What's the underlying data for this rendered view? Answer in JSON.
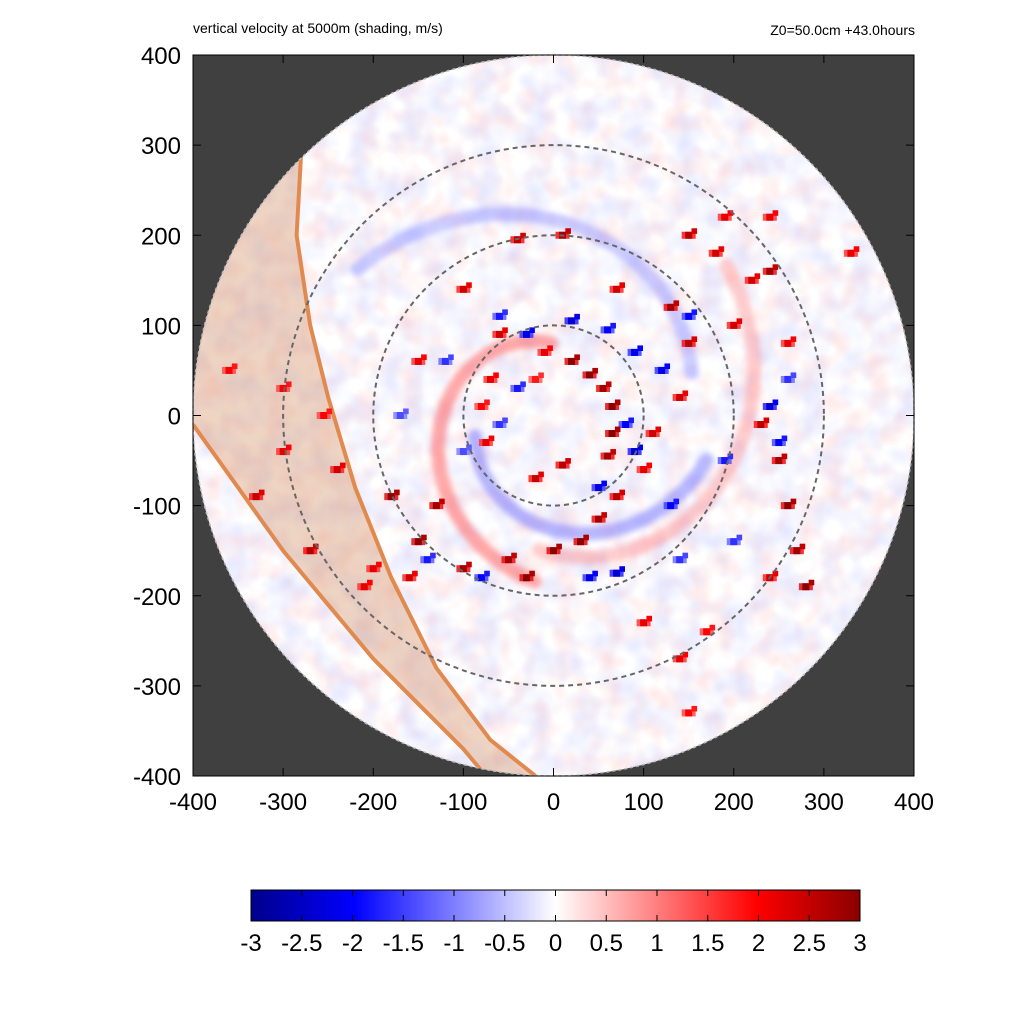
{
  "header": {
    "title_left": "vertical velocity at 5000m (shading, m/s)",
    "title_right": "Z0=50.0cm  +43.0hours"
  },
  "colors": {
    "background_outside_domain": "#404040",
    "negative_max": "#00008b",
    "negative_mid": "#0000ff",
    "zero": "#ffffff",
    "positive_mid": "#ff0000",
    "positive_max": "#8b0000",
    "band_fill": "#d9a07a",
    "band_edge": "#e08a4f",
    "range_rings": "#666666"
  },
  "chart_data": {
    "type": "heatmap",
    "title": "vertical velocity at 5000m (shading, m/s)",
    "annotation": "Z0=50.0cm  +43.0hours",
    "xlim": [
      -400,
      400
    ],
    "ylim": [
      -400,
      400
    ],
    "x_ticks": [
      "-400",
      "-300",
      "-200",
      "-100",
      "0",
      "100",
      "200",
      "300",
      "400"
    ],
    "y_ticks": [
      "400",
      "300",
      "200",
      "100",
      "0",
      "-100",
      "-200",
      "-300",
      "-400"
    ],
    "domain_radius": 400,
    "range_rings": [
      100,
      200,
      300
    ],
    "colorbar": {
      "min": -3,
      "max": 3,
      "ticks": [
        "-3",
        "-2.5",
        "-2",
        "-1.5",
        "-1",
        "-0.5",
        "0",
        "0.5",
        "1",
        "1.5",
        "2",
        "2.5",
        "3"
      ]
    },
    "band_inner_edge": [
      [
        -280,
        290
      ],
      [
        -285,
        200
      ],
      [
        -270,
        100
      ],
      [
        -250,
        20
      ],
      [
        -220,
        -80
      ],
      [
        -180,
        -180
      ],
      [
        -130,
        -280
      ],
      [
        -70,
        -360
      ],
      [
        -20,
        -400
      ]
    ],
    "band_outer_edge": [
      [
        -400,
        -10
      ],
      [
        -350,
        -80
      ],
      [
        -300,
        -150
      ],
      [
        -250,
        -210
      ],
      [
        -200,
        -270
      ],
      [
        -150,
        -320
      ],
      [
        -100,
        -370
      ],
      [
        -75,
        -400
      ]
    ],
    "updraft_cells": [
      [
        20,
        60,
        3
      ],
      [
        40,
        45,
        3
      ],
      [
        55,
        30,
        2.8
      ],
      [
        65,
        10,
        3
      ],
      [
        65,
        -20,
        3
      ],
      [
        60,
        -45,
        2.8
      ],
      [
        10,
        -55,
        2.6
      ],
      [
        -10,
        70,
        2.2
      ],
      [
        -20,
        40,
        1.8
      ],
      [
        -60,
        90,
        2.4
      ],
      [
        -70,
        40,
        2.2
      ],
      [
        -80,
        10,
        2
      ],
      [
        -75,
        -30,
        2.2
      ],
      [
        -20,
        -70,
        2.5
      ],
      [
        0,
        -150,
        3
      ],
      [
        30,
        -140,
        3
      ],
      [
        50,
        -115,
        2.8
      ],
      [
        70,
        -90,
        2.6
      ],
      [
        100,
        -60,
        2.2
      ],
      [
        110,
        -20,
        2.4
      ],
      [
        140,
        20,
        2.4
      ],
      [
        150,
        80,
        2.6
      ],
      [
        130,
        120,
        2.8
      ],
      [
        70,
        140,
        2.4
      ],
      [
        10,
        200,
        2.8
      ],
      [
        -40,
        195,
        2.6
      ],
      [
        -100,
        140,
        2.4
      ],
      [
        -150,
        60,
        2.2
      ],
      [
        -180,
        -90,
        3
      ],
      [
        -130,
        -100,
        2.8
      ],
      [
        -150,
        -140,
        3
      ],
      [
        -100,
        -170,
        2.8
      ],
      [
        -50,
        -160,
        2.8
      ],
      [
        -30,
        -180,
        3
      ],
      [
        -160,
        -180,
        2.4
      ],
      [
        -200,
        -170,
        2.2
      ],
      [
        -240,
        -60,
        2.4
      ],
      [
        -255,
        0,
        2
      ],
      [
        230,
        -10,
        2.6
      ],
      [
        250,
        -50,
        2.8
      ],
      [
        260,
        -100,
        3
      ],
      [
        270,
        -150,
        2.8
      ],
      [
        280,
        -190,
        3
      ],
      [
        240,
        -180,
        2.4
      ],
      [
        200,
        100,
        2.4
      ],
      [
        260,
        80,
        2.2
      ],
      [
        220,
        150,
        2.4
      ],
      [
        150,
        200,
        2.6
      ],
      [
        180,
        180,
        2.4
      ],
      [
        330,
        180,
        2.2
      ],
      [
        240,
        160,
        2.8
      ],
      [
        -330,
        -90,
        2.5
      ],
      [
        -360,
        50,
        2
      ],
      [
        -300,
        -40,
        2.2
      ],
      [
        -270,
        -150,
        2.6
      ],
      [
        140,
        -270,
        2.2
      ],
      [
        100,
        -230,
        2.2
      ],
      [
        170,
        -240,
        2
      ],
      [
        -210,
        -190,
        2.2
      ],
      [
        190,
        220,
        2.2
      ],
      [
        240,
        220,
        2.2
      ],
      [
        -300,
        30,
        2
      ],
      [
        150,
        -330,
        2
      ]
    ],
    "downdraft_cells": [
      [
        -30,
        90,
        -2.2
      ],
      [
        20,
        105,
        -2.4
      ],
      [
        60,
        95,
        -2
      ],
      [
        90,
        70,
        -2.2
      ],
      [
        -40,
        30,
        -1.8
      ],
      [
        -60,
        -10,
        -1.6
      ],
      [
        90,
        -40,
        -2.4
      ],
      [
        80,
        -10,
        -2
      ],
      [
        50,
        -80,
        -2.2
      ],
      [
        40,
        -180,
        -2.2
      ],
      [
        70,
        -175,
        -2.4
      ],
      [
        -80,
        -180,
        -2
      ],
      [
        -140,
        -160,
        -1.8
      ],
      [
        130,
        -100,
        -2
      ],
      [
        190,
        -50,
        -1.8
      ],
      [
        240,
        10,
        -2.4
      ],
      [
        250,
        -30,
        -2
      ],
      [
        120,
        50,
        -2.2
      ],
      [
        150,
        110,
        -2
      ],
      [
        -120,
        60,
        -1.6
      ],
      [
        -60,
        110,
        -1.8
      ],
      [
        260,
        40,
        -1.6
      ],
      [
        200,
        -140,
        -1.6
      ],
      [
        -170,
        0,
        -1.4
      ],
      [
        -100,
        -40,
        -1.4
      ],
      [
        140,
        -160,
        -1.6
      ]
    ]
  },
  "spiral_bands": [
    {
      "type": "pos",
      "r0": 80,
      "t0": 1.6,
      "k": 0.28,
      "len": 3.0,
      "w": 0.6
    },
    {
      "type": "neg",
      "r0": 90,
      "t0": 3.4,
      "k": 0.26,
      "len": 2.6,
      "w": 0.5
    },
    {
      "type": "pos",
      "r0": 150,
      "t0": 4.6,
      "k": 0.22,
      "len": 2.4,
      "w": 0.35
    },
    {
      "type": "neg",
      "r0": 160,
      "t0": 0.3,
      "k": 0.24,
      "len": 2.2,
      "w": 0.35
    }
  ]
}
